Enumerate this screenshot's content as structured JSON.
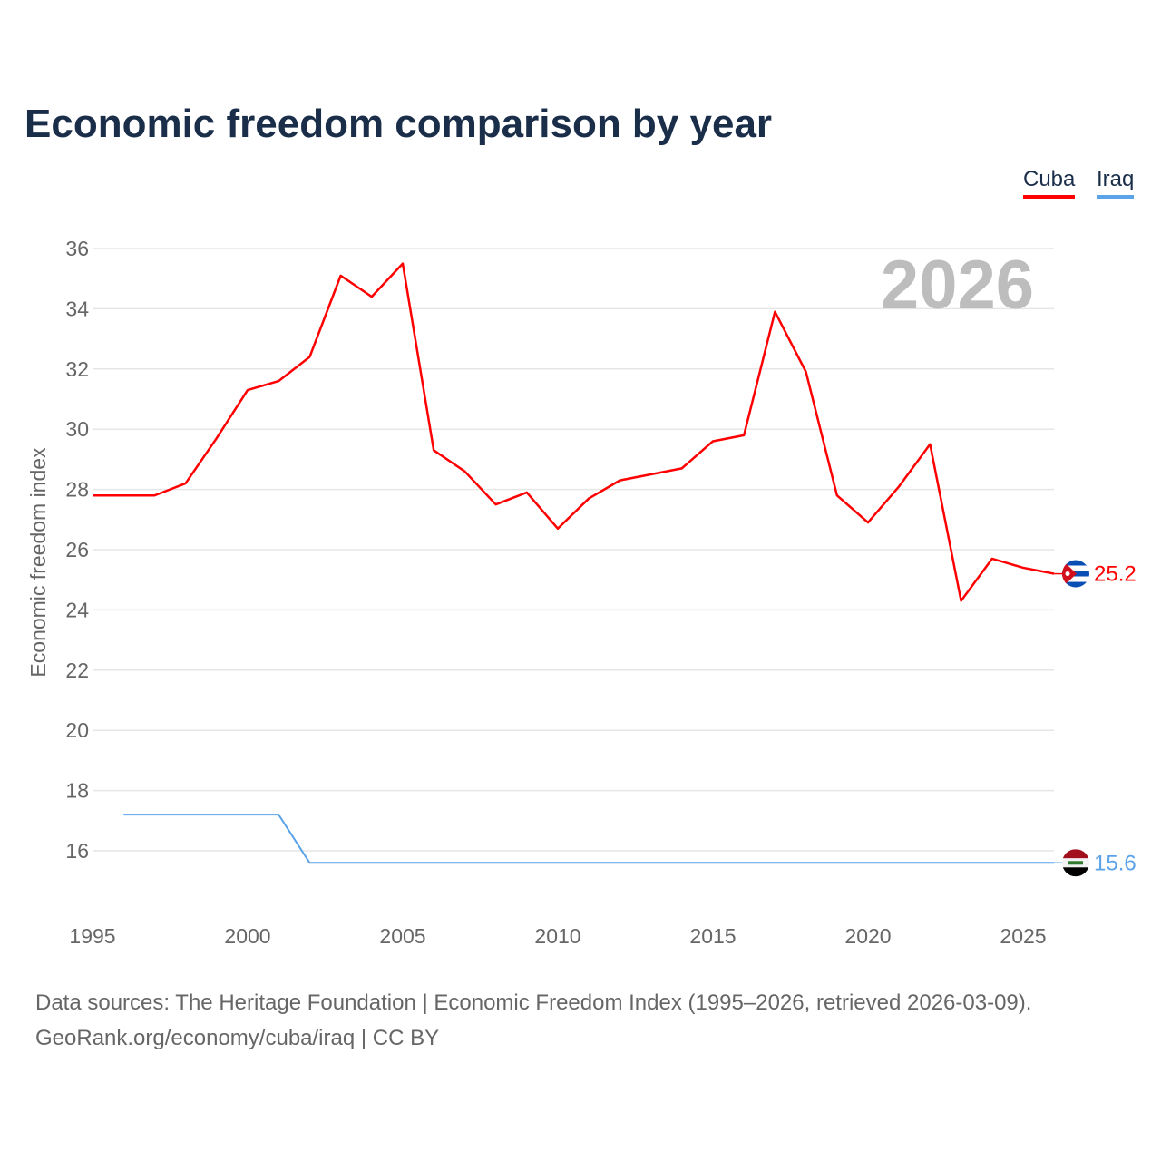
{
  "chart_data": {
    "type": "line",
    "title": "Economic freedom comparison by year",
    "xlabel": "",
    "ylabel": "Economic freedom index",
    "year_watermark": "2026",
    "xlim": [
      1995,
      2026
    ],
    "ylim": [
      14,
      36
    ],
    "yticks": [
      16,
      18,
      20,
      22,
      24,
      26,
      28,
      30,
      32,
      34,
      36
    ],
    "xticks": [
      1995,
      2000,
      2005,
      2010,
      2015,
      2020,
      2025
    ],
    "grid": true,
    "legend_placement": "top-right",
    "series": [
      {
        "name": "Cuba",
        "color": "#ff0000",
        "end_label": "25.2",
        "flag": "cuba-flag",
        "x": [
          1995,
          1996,
          1997,
          1998,
          1999,
          2000,
          2001,
          2002,
          2003,
          2004,
          2005,
          2006,
          2007,
          2008,
          2009,
          2010,
          2011,
          2012,
          2013,
          2014,
          2015,
          2016,
          2017,
          2018,
          2019,
          2020,
          2021,
          2022,
          2023,
          2024,
          2025,
          2026
        ],
        "values": [
          27.8,
          27.8,
          27.8,
          28.2,
          29.7,
          31.3,
          31.6,
          32.4,
          35.1,
          34.4,
          35.5,
          29.3,
          28.6,
          27.5,
          27.9,
          26.7,
          27.7,
          28.3,
          28.5,
          28.7,
          29.6,
          29.8,
          33.9,
          31.9,
          27.8,
          26.9,
          28.1,
          29.5,
          24.3,
          25.7,
          25.4,
          25.2
        ]
      },
      {
        "name": "Iraq",
        "color": "#5ba3e8",
        "end_label": "15.6",
        "flag": "iraq-flag",
        "x": [
          1996,
          1997,
          1998,
          1999,
          2000,
          2001,
          2002,
          2003,
          2004,
          2005,
          2006,
          2007,
          2008,
          2009,
          2010,
          2011,
          2012,
          2013,
          2014,
          2015,
          2016,
          2017,
          2018,
          2019,
          2020,
          2021,
          2022,
          2023,
          2024,
          2025,
          2026
        ],
        "values": [
          17.2,
          17.2,
          17.2,
          17.2,
          17.2,
          17.2,
          15.6,
          15.6,
          15.6,
          15.6,
          15.6,
          15.6,
          15.6,
          15.6,
          15.6,
          15.6,
          15.6,
          15.6,
          15.6,
          15.6,
          15.6,
          15.6,
          15.6,
          15.6,
          15.6,
          15.6,
          15.6,
          15.6,
          15.6,
          15.6,
          15.6
        ]
      }
    ]
  },
  "footer": {
    "line1": "Data sources: The Heritage Foundation | Economic Freedom Index (1995–2026, retrieved 2026-03-09).",
    "line2": "GeoRank.org/economy/cuba/iraq | CC BY"
  }
}
